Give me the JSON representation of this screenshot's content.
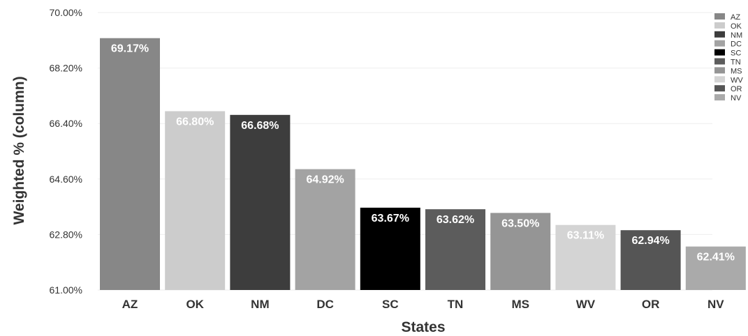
{
  "chart_data": {
    "type": "bar",
    "categories": [
      "AZ",
      "OK",
      "NM",
      "DC",
      "SC",
      "TN",
      "MS",
      "WV",
      "OR",
      "NV"
    ],
    "values": [
      69.17,
      66.8,
      66.68,
      64.92,
      63.67,
      63.62,
      63.5,
      63.11,
      62.94,
      62.41
    ],
    "data_labels": [
      "69.17%",
      "66.80%",
      "66.68%",
      "64.92%",
      "63.67%",
      "63.62%",
      "63.50%",
      "63.11%",
      "62.94%",
      "62.41%"
    ],
    "colors": [
      "#878787",
      "#cccccc",
      "#3d3d3d",
      "#a3a3a3",
      "#000000",
      "#5c5c5c",
      "#959595",
      "#d4d4d4",
      "#555555",
      "#aaaaaa"
    ],
    "title": "",
    "xlabel": "States",
    "ylabel": "Weighted % (column)",
    "ylim": [
      61.0,
      70.0
    ],
    "yticks": [
      61.0,
      62.8,
      64.6,
      66.4,
      68.2,
      70.0
    ],
    "ytick_labels": [
      "61.00%",
      "62.80%",
      "64.60%",
      "66.40%",
      "68.20%",
      "70.00%"
    ],
    "grid": true,
    "legend": {
      "placement": "top-right",
      "entries": [
        "AZ",
        "OK",
        "NM",
        "DC",
        "SC",
        "TN",
        "MS",
        "WV",
        "OR",
        "NV"
      ]
    }
  }
}
